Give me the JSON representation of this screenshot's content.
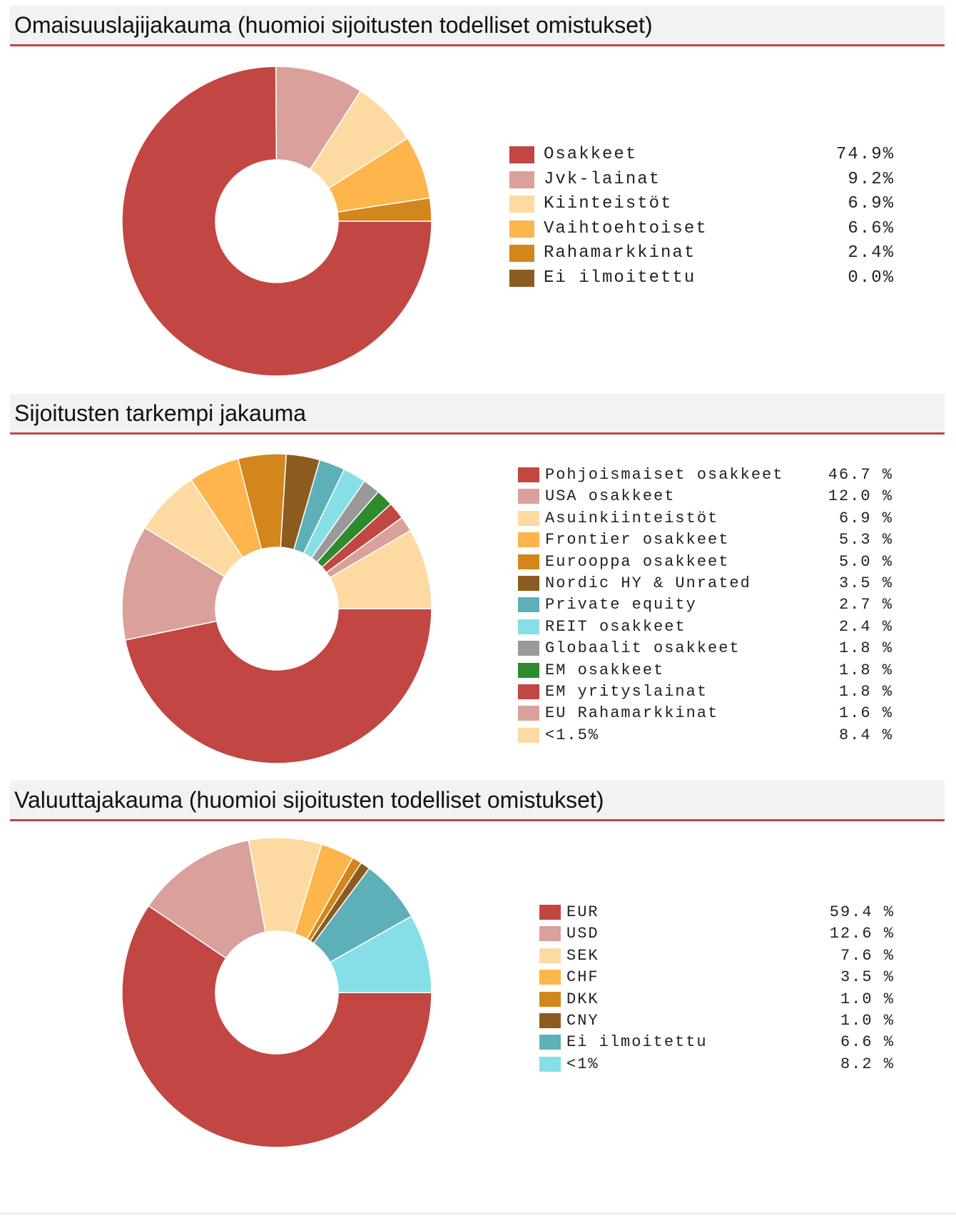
{
  "chart_data": [
    {
      "type": "pie",
      "title": "Omaisuuslajijakauma (huomioi sijoitusten todelliset omistukset)",
      "donut": true,
      "legend_position": "right",
      "categories": [
        "Osakkeet",
        "Jvk-lainat",
        "Kiinteistöt",
        "Vaihtoehtoiset",
        "Rahamarkkinat",
        "Ei ilmoitettu"
      ],
      "values": [
        74.9,
        9.2,
        6.9,
        6.6,
        2.4,
        0.0
      ],
      "value_labels": [
        "74.9%",
        "9.2%",
        "6.9%",
        "6.6%",
        "2.4%",
        "0.0%"
      ],
      "colors": [
        "#c24641",
        "#daa09c",
        "#fddaa2",
        "#fdb54c",
        "#d3861b",
        "#8b5b1f"
      ]
    },
    {
      "type": "pie",
      "title": "Sijoitusten tarkempi jakauma",
      "donut": true,
      "legend_position": "right",
      "categories": [
        "Pohjoismaiset osakkeet",
        "USA osakkeet",
        "Asuinkiinteistöt",
        "Frontier osakkeet",
        "Eurooppa osakkeet",
        "Nordic HY & Unrated",
        "Private equity",
        "REIT osakkeet",
        "Globaalit osakkeet",
        "EM osakkeet",
        "EM yrityslainat",
        "EU Rahamarkkinat",
        "<1.5%"
      ],
      "values": [
        46.7,
        12.0,
        6.9,
        5.3,
        5.0,
        3.5,
        2.7,
        2.4,
        1.8,
        1.8,
        1.8,
        1.6,
        8.4
      ],
      "value_labels": [
        "46.7 %",
        "12.0 %",
        "6.9 %",
        "5.3 %",
        "5.0 %",
        "3.5 %",
        "2.7 %",
        "2.4 %",
        "1.8 %",
        "1.8 %",
        "1.8 %",
        "1.6 %",
        "8.4 %"
      ],
      "colors": [
        "#c24641",
        "#daa09c",
        "#fddaa2",
        "#fdb54c",
        "#d3861b",
        "#8b5b1f",
        "#5eb0b8",
        "#86dfe6",
        "#999999",
        "#2d8a2d",
        "#c24641",
        "#daa09c",
        "#fddaa2"
      ]
    },
    {
      "type": "pie",
      "title": "Valuuttajakauma (huomioi sijoitusten todelliset omistukset)",
      "donut": true,
      "legend_position": "right",
      "categories": [
        "EUR",
        "USD",
        "SEK",
        "CHF",
        "DKK",
        "CNY",
        "Ei ilmoitettu",
        "<1%"
      ],
      "values": [
        59.4,
        12.6,
        7.6,
        3.5,
        1.0,
        1.0,
        6.6,
        8.2
      ],
      "value_labels": [
        "59.4 %",
        "12.6 %",
        "7.6 %",
        "3.5 %",
        "1.0 %",
        "1.0 %",
        "6.6 %",
        "8.2 %"
      ],
      "colors": [
        "#c24641",
        "#daa09c",
        "#fddaa2",
        "#fdb54c",
        "#d3861b",
        "#8b5b1f",
        "#5eb0b8",
        "#86dfe6"
      ]
    }
  ]
}
